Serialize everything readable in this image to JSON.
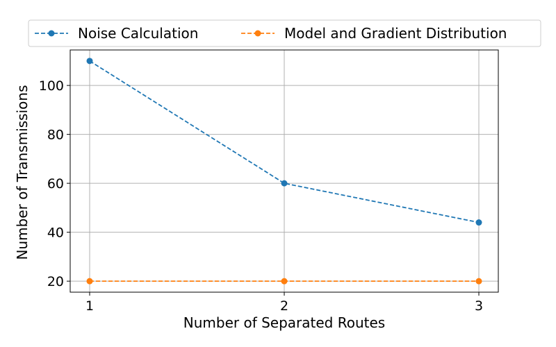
{
  "chart_data": {
    "type": "line",
    "x": [
      1,
      2,
      3
    ],
    "xticks": [
      "1",
      "2",
      "3"
    ],
    "yticks": [
      20,
      40,
      60,
      80,
      100
    ],
    "xlim": [
      0.9,
      3.1
    ],
    "ylim": [
      15.5,
      114.5
    ],
    "xlabel": "Number of Separated Routes",
    "ylabel": "Number of Transmissions",
    "grid": true,
    "legend_position": "top",
    "series": [
      {
        "name": "Noise Calculation",
        "values": [
          110,
          60,
          44
        ],
        "color": "#1f77b4",
        "linestyle": "dashed",
        "marker": "circle"
      },
      {
        "name": "Model and Gradient Distribution",
        "values": [
          20,
          20,
          20
        ],
        "color": "#ff7f0e",
        "linestyle": "dashed",
        "marker": "circle"
      }
    ]
  }
}
